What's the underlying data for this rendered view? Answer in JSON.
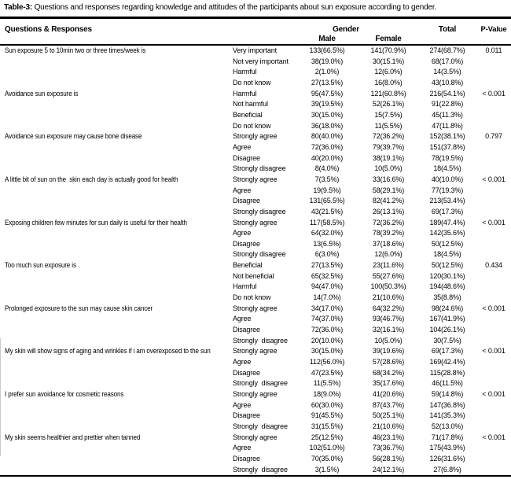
{
  "title": {
    "prefix": "Table-3:",
    "text": " Questions and responses regarding knowledge and attitudes of the participants about sun exposure according to gender."
  },
  "colors": {
    "text": "#000000",
    "background": "#ffffff",
    "rule": "#000000"
  },
  "chart_data": {
    "type": "table",
    "header": {
      "questions_responses": "Questions & Responses",
      "gender": "Gender",
      "male": "Male",
      "female": "Female",
      "total": "Total",
      "p_value": "P-Value"
    },
    "groups": [
      {
        "question": "Sun exposure 5 to 10min two or three times/week is",
        "p_value": "0.011",
        "responses": [
          {
            "label": "Very important",
            "male": "133(66.5%)",
            "female": "141(70.9%)",
            "total": "274(68.7%)"
          },
          {
            "label": "Not very important",
            "male": "38(19.0%)",
            "female": "30(15.1%)",
            "total": "68(17.0%)"
          },
          {
            "label": "Harmful",
            "male": "2(1.0%)",
            "female": "12(6.0%)",
            "total": "14(3.5%)"
          },
          {
            "label": "Do not know",
            "male": "27(13.5%)",
            "female": "16(8.0%)",
            "total": "43(10.8%)"
          }
        ]
      },
      {
        "question": "Avoidance sun exposure is",
        "p_value": "< 0.001",
        "responses": [
          {
            "label": "Harmful",
            "male": "95(47.5%)",
            "female": "121(60.8%)",
            "total": "216(54.1%)"
          },
          {
            "label": "Not harmful",
            "male": "39(19.5%)",
            "female": "52(26.1%)",
            "total": "91(22.8%)"
          },
          {
            "label": "Beneficial",
            "male": "30(15.0%)",
            "female": "15(7.5%)",
            "total": "45(11.3%)"
          },
          {
            "label": "Do not know",
            "male": "36(18.0%)",
            "female": "11(5.5%)",
            "total": "47(11.8%)"
          }
        ]
      },
      {
        "question": "Avoidance sun exposure may cause bone disease",
        "p_value": "0.797",
        "responses": [
          {
            "label": "Strongly agree",
            "male": "80(40.0%)",
            "female": "72(36.2%)",
            "total": "152(38.1%)"
          },
          {
            "label": "Agree",
            "male": "72(36.0%)",
            "female": "79(39.7%)",
            "total": "151(37.8%)"
          },
          {
            "label": "Disagree",
            "male": "40(20.0%)",
            "female": "38(19.1%)",
            "total": "78(19.5%)"
          },
          {
            "label": "Strongly disagree",
            "male": "8(4.0%)",
            "female": "10(5.0%)",
            "total": "18(4.5%)"
          }
        ]
      },
      {
        "question": "A little bit of sun on the  skin each day is actually good for health",
        "p_value": "< 0.001",
        "responses": [
          {
            "label": "Strongly agree",
            "male": "7(3.5%)",
            "female": "33(16.6%)",
            "total": "40(10.0%)"
          },
          {
            "label": "Agree",
            "male": "19(9.5%)",
            "female": "58(29.1%)",
            "total": "77(19.3%)"
          },
          {
            "label": "Disagree",
            "male": "131(65.5%)",
            "female": "82(41.2%)",
            "total": "213(53.4%)"
          },
          {
            "label": "Strongly disagree",
            "male": "43(21.5%)",
            "female": "26(13.1%)",
            "total": "69(17.3%)"
          }
        ]
      },
      {
        "question": "Exposing children few minutes for sun daily is useful for their health",
        "p_value": "< 0.001",
        "responses": [
          {
            "label": "Strongly agree",
            "male": "117(58.5%)",
            "female": "72(36.2%)",
            "total": "189(47.4%)"
          },
          {
            "label": "Agree",
            "male": "64(32.0%)",
            "female": "78(39.2%)",
            "total": "142(35.6%)"
          },
          {
            "label": "Disagree",
            "male": "13(6.5%)",
            "female": "37(18.6%)",
            "total": "50(12.5%)"
          },
          {
            "label": "Strongly disagree",
            "male": "6(3.0%)",
            "female": "12(6.0%)",
            "total": "18(4.5%)"
          }
        ]
      },
      {
        "question": "Too much sun exposure is",
        "p_value": "0.434",
        "responses": [
          {
            "label": "Beneficial",
            "male": "27(13.5%)",
            "female": "23(11.6%)",
            "total": "50(12.5%)"
          },
          {
            "label": "Not beneficial",
            "male": "65(32.5%)",
            "female": "55(27.6%)",
            "total": "120(30.1%)"
          },
          {
            "label": "Harmful",
            "male": "94(47.0%)",
            "female": "100(50.3%)",
            "total": "194(48.6%)"
          },
          {
            "label": "Do not know",
            "male": "14(7.0%)",
            "female": "21(10.6%)",
            "total": "35(8.8%)"
          }
        ]
      },
      {
        "question": "Prolonged exposure to the sun may cause skin cancer",
        "p_value": "< 0.001",
        "responses": [
          {
            "label": "Strongly agree",
            "male": "34(17.0%)",
            "female": "64(32.2%)",
            "total": "98(24.6%)"
          },
          {
            "label": "Agree",
            "male": "74(37.0%)",
            "female": "93(46.7%)",
            "total": "167(41.9%)"
          },
          {
            "label": "Disagree",
            "male": "72(36.0%)",
            "female": "32(16.1%)",
            "total": "104(26.1%)"
          },
          {
            "label": "Strongly  disagree",
            "male": "20(10.0%)",
            "female": "10(5.0%)",
            "total": "30(7.5%)"
          }
        ]
      },
      {
        "question": "My skin will show signs of aging and wrinkles if i am overexposed to the sun",
        "p_value": "< 0.001",
        "responses": [
          {
            "label": "Strongly agree",
            "male": "30(15.0%)",
            "female": "39(19.6%)",
            "total": "69(17.3%)"
          },
          {
            "label": "Agree",
            "male": "112(56.0%)",
            "female": "57(28.6%)",
            "total": "169(42.4%)"
          },
          {
            "label": "Disagree",
            "male": "47(23.5%)",
            "female": "68(34.2%)",
            "total": "115(28.8%)"
          },
          {
            "label": "Strongly  disagree",
            "male": "11(5.5%)",
            "female": "35(17.6%)",
            "total": "46(11.5%)"
          }
        ]
      },
      {
        "question": "I prefer sun avoidance for cosmetic reasons",
        "p_value": "< 0.001",
        "responses": [
          {
            "label": "Strongly agree",
            "male": "18(9.0%)",
            "female": "41(20.6%)",
            "total": "59(14.8%)"
          },
          {
            "label": "Agree",
            "male": "60(30.0%)",
            "female": "87(43.7%)",
            "total": "147(36.8%)"
          },
          {
            "label": "Disagree",
            "male": "91(45.5%)",
            "female": "50(25.1%)",
            "total": "141(35.3%)"
          },
          {
            "label": "Strongly  disagree",
            "male": "31(15.5%)",
            "female": "21(10.6%)",
            "total": "52(13.0%)"
          }
        ]
      },
      {
        "question": "My skin seems healthier and prettier when tanned",
        "p_value": "< 0.001",
        "responses": [
          {
            "label": "Strongly agree",
            "male": "25(12.5%)",
            "female": "46(23.1%)",
            "total": "71(17.8%)"
          },
          {
            "label": "Agree",
            "male": "102(51.0%)",
            "female": "73(36.7%)",
            "total": "175(43.9%)"
          },
          {
            "label": "Disagree",
            "male": "70(35.0%)",
            "female": "56(28.1%)",
            "total": "126(31.6%)"
          },
          {
            "label": "Strongly  disagree",
            "male": "3(1.5%)",
            "female": "24(12.1%)",
            "total": "27(6.8%)"
          }
        ]
      }
    ]
  }
}
